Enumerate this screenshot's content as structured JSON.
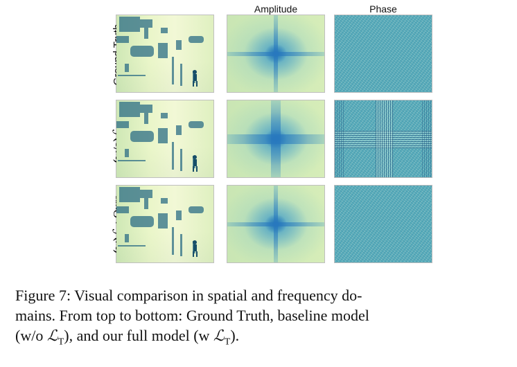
{
  "figure": {
    "column_headers": {
      "amplitude": "Amplitude",
      "phase": "Phase"
    },
    "row_labels": {
      "ground_truth": "Ground Truth",
      "baseline": {
        "prefix": "(w/o)",
        "symbol": "ℒ",
        "subscript": "T"
      },
      "ours": {
        "prefix": "(w)",
        "symbol": "ℒ",
        "subscript": "T",
        "suffix": ": Ours"
      }
    },
    "caption": {
      "line1": "Figure 7: Visual comparison in spatial and frequency do-",
      "line2": "mains. From top to bottom: Ground Truth, baseline model",
      "line3_part1": "(w/o ",
      "symbol": "ℒ",
      "subscript": "T",
      "line3_part2": "), and our full model (w ",
      "line3_part3": ")."
    }
  }
}
